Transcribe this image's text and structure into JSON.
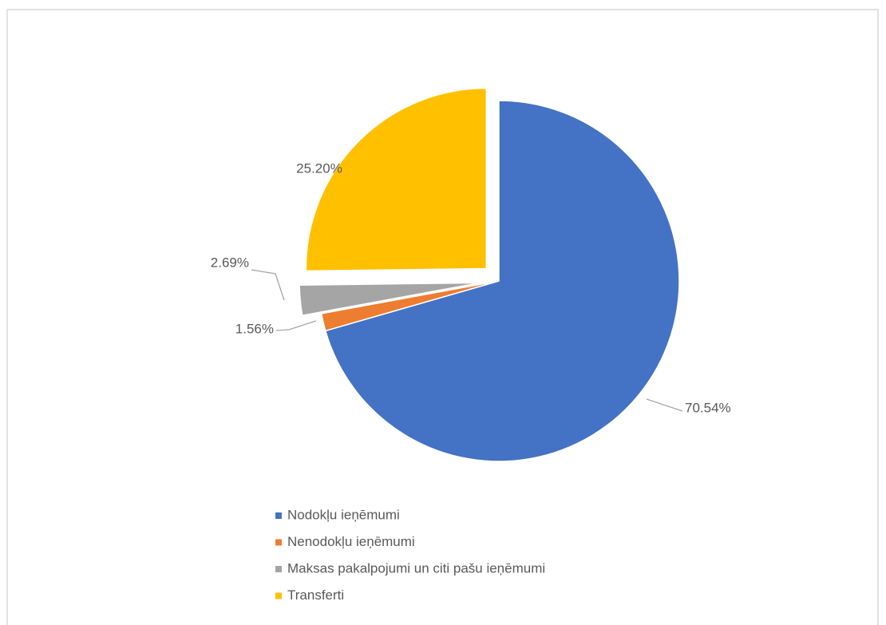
{
  "chart_data": {
    "type": "pie",
    "categories": [
      "Nodokļu ieņēmumi",
      "Nenodokļu ieņēmumi",
      "Maksas pakalpojumi un citi pašu ieņēmumi",
      "Transferti"
    ],
    "values": [
      70.54,
      1.56,
      2.69,
      25.2
    ],
    "value_labels": [
      "70.54%",
      "1.56%",
      "2.69%",
      "25.20%"
    ],
    "colors": [
      "#4472c4",
      "#ed7d31",
      "#a5a5a5",
      "#ffc000"
    ]
  }
}
